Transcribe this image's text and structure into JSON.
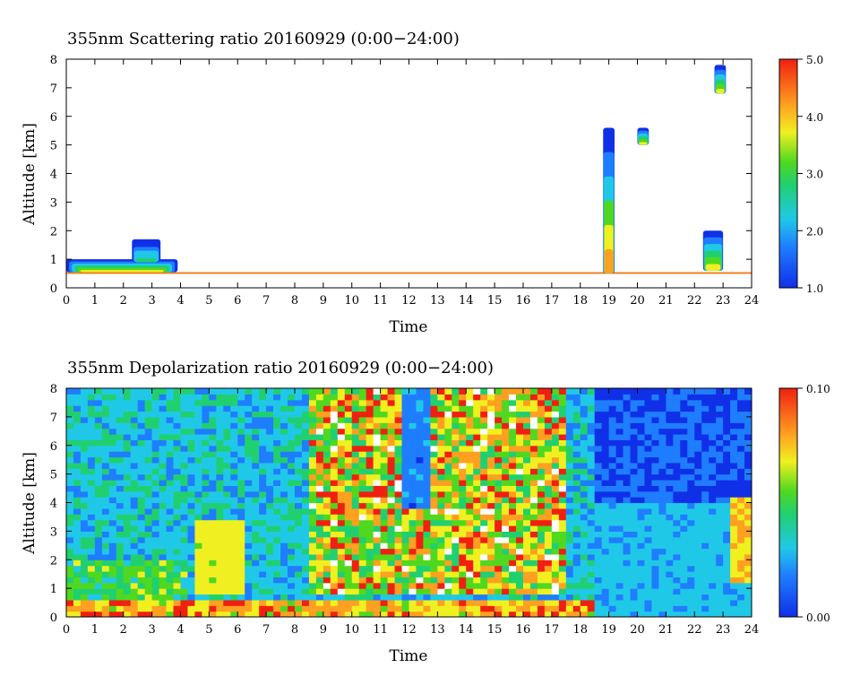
{
  "chart_data": [
    {
      "type": "heatmap",
      "title": "355nm Scattering ratio  20160929 (0:00−24:00)",
      "xlabel": "Time",
      "ylabel": "Altitude [km]",
      "xlim": [
        0,
        24
      ],
      "ylim": [
        0,
        8
      ],
      "x_ticks": [
        "0",
        "1",
        "2",
        "3",
        "4",
        "5",
        "6",
        "7",
        "8",
        "9",
        "10",
        "11",
        "12",
        "13",
        "14",
        "15",
        "16",
        "17",
        "18",
        "19",
        "20",
        "21",
        "22",
        "23",
        "24"
      ],
      "y_ticks": [
        "0",
        "1",
        "2",
        "3",
        "4",
        "5",
        "6",
        "7",
        "8"
      ],
      "colorbar": {
        "range": [
          1.0,
          5.0
        ],
        "tick_labels": [
          "1.0",
          "2.0",
          "3.0",
          "4.0",
          "5.0"
        ]
      },
      "background": "#ffffff",
      "features": [
        {
          "kind": "surface_layer",
          "t": [
            0,
            24
          ],
          "top_km": 0.55
        },
        {
          "kind": "boundary_layer",
          "t": [
            0,
            3.9
          ],
          "base_km": 0.55,
          "top_km": 1.0,
          "peak_ratio": 4.5
        },
        {
          "kind": "cloud",
          "t": [
            2.3,
            3.3
          ],
          "base_km": 0.9,
          "top_km": 1.7,
          "peak_ratio": 3.0
        },
        {
          "kind": "cloud",
          "t": [
            18.8,
            19.2
          ],
          "base_km": 0.5,
          "top_km": 5.6,
          "peak_ratio": 5.0
        },
        {
          "kind": "cloud",
          "t": [
            20.0,
            20.4
          ],
          "base_km": 5.0,
          "top_km": 5.6,
          "peak_ratio": 4.5
        },
        {
          "kind": "cloud",
          "t": [
            22.3,
            23.0
          ],
          "base_km": 0.6,
          "top_km": 2.0,
          "peak_ratio": 4.0
        },
        {
          "kind": "cloud",
          "t": [
            22.7,
            23.1
          ],
          "base_km": 6.8,
          "top_km": 7.8,
          "peak_ratio": 4.5
        }
      ]
    },
    {
      "type": "heatmap",
      "title": "355nm Depolarization ratio  20160929 (0:00−24:00)",
      "xlabel": "Time",
      "ylabel": "Altitude [km]",
      "xlim": [
        0,
        24
      ],
      "ylim": [
        0,
        8
      ],
      "x_ticks": [
        "0",
        "1",
        "2",
        "3",
        "4",
        "5",
        "6",
        "7",
        "8",
        "9",
        "10",
        "11",
        "12",
        "13",
        "14",
        "15",
        "16",
        "17",
        "18",
        "19",
        "20",
        "21",
        "22",
        "23",
        "24"
      ],
      "y_ticks": [
        "0",
        "1",
        "2",
        "3",
        "4",
        "5",
        "6",
        "7",
        "8"
      ],
      "colorbar": {
        "range": [
          0.0,
          0.1
        ],
        "tick_labels": [
          "0.00",
          "0.10"
        ]
      },
      "features": [
        {
          "kind": "noisy_high_depol",
          "t": [
            8.5,
            17.5
          ],
          "base_km": 0.8,
          "top_km": 8.0
        },
        {
          "kind": "clear_gap",
          "t": [
            11.7,
            12.7
          ],
          "base_km": 3.8,
          "top_km": 8.0
        },
        {
          "kind": "surface_high_depol",
          "t": [
            0,
            18.5
          ],
          "base_km": 0.0,
          "top_km": 0.7
        },
        {
          "kind": "dust_layer",
          "t": [
            4.5,
            6.2
          ],
          "base_km": 0.8,
          "top_km": 3.5
        },
        {
          "kind": "low_depol",
          "t": [
            18.5,
            24
          ],
          "base_km": 0.0,
          "top_km": 4.0
        },
        {
          "kind": "cloud",
          "t": [
            23.2,
            24
          ],
          "base_km": 1.2,
          "top_km": 4.2
        }
      ]
    }
  ]
}
